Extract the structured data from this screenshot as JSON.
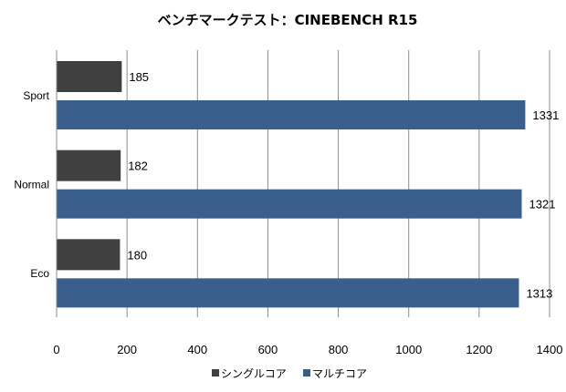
{
  "chart_data": {
    "type": "bar",
    "orientation": "horizontal",
    "title": "ベンチマークテスト：CINEBENCH R15",
    "categories": [
      "Sport",
      "Normal",
      "Eco"
    ],
    "series": [
      {
        "name": "シングルコア",
        "values": [
          185,
          182,
          180
        ],
        "color": "#404040"
      },
      {
        "name": "マルチコア",
        "values": [
          1331,
          1321,
          1313
        ],
        "color": "#3a5f8f"
      }
    ],
    "xlim": [
      0,
      1400
    ],
    "xticks": [
      0,
      200,
      400,
      600,
      800,
      1000,
      1200,
      1400
    ],
    "grid": true,
    "legend_position": "bottom"
  }
}
